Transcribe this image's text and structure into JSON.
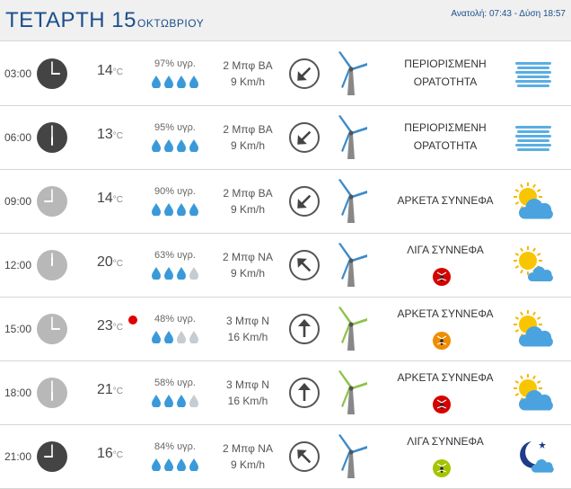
{
  "header": {
    "day": "ΤΕΤΑΡΤΗ 15",
    "month": "ΟΚΤΩΒΡΙΟΥ",
    "sun": "Ανατολή: 07:43  - Δύση 18:57"
  },
  "colors": {
    "title": "#1a4f8b",
    "drop_full": "#3a9ad9",
    "drop_empty": "#c5ccd2",
    "clock_night": "#444444",
    "clock_day": "#b8b8b8",
    "turbine_blue": "#3d8bc9",
    "turbine_green": "#8bc34a",
    "alert_red": "#d50000",
    "alert_orange": "#f08c00",
    "alert_green": "#a5c400"
  },
  "rows": [
    {
      "time": "03:00",
      "hour": 3,
      "clock": "night",
      "temp": "14",
      "unit": "°C",
      "heat": false,
      "humidity": "97% υγρ.",
      "drops": 4,
      "wind": "2 Μπφ ΒΑ",
      "speed": "9 Km/h",
      "arrow": "arrow-down-left",
      "turbine": "blue",
      "cond": [
        "ΠΕΡΙΟΡΙΣΜΕΝΗ",
        "ΟΡΑΤΟΤΗΤΑ"
      ],
      "badge": null,
      "icon": "fog-icon"
    },
    {
      "time": "06:00",
      "hour": 6,
      "clock": "night",
      "temp": "13",
      "unit": "°C",
      "heat": false,
      "humidity": "95% υγρ.",
      "drops": 4,
      "wind": "2 Μπφ ΒΑ",
      "speed": "9 Km/h",
      "arrow": "arrow-down-left",
      "turbine": "blue",
      "cond": [
        "ΠΕΡΙΟΡΙΣΜΕΝΗ",
        "ΟΡΑΤΟΤΗΤΑ"
      ],
      "badge": null,
      "icon": "fog-icon"
    },
    {
      "time": "09:00",
      "hour": 9,
      "clock": "day",
      "temp": "14",
      "unit": "°C",
      "heat": false,
      "humidity": "90% υγρ.",
      "drops": 4,
      "wind": "2 Μπφ ΒΑ",
      "speed": "9 Km/h",
      "arrow": "arrow-down-left",
      "turbine": "blue",
      "cond": [
        "ΑΡΚΕΤΑ ΣΥΝΝΕΦΑ"
      ],
      "badge": null,
      "icon": "sun-cloud-icon"
    },
    {
      "time": "12:00",
      "hour": 12,
      "clock": "day",
      "temp": "20",
      "unit": "°C",
      "heat": false,
      "humidity": "63% υγρ.",
      "drops": 3,
      "wind": "2 Μπφ ΝΑ",
      "speed": "9 Km/h",
      "arrow": "arrow-up-left",
      "turbine": "blue",
      "cond": [
        "ΛΙΓΑ ΣΥΝΝΕΦΑ"
      ],
      "badge": "red",
      "icon": "sun-small-cloud-icon"
    },
    {
      "time": "15:00",
      "hour": 15,
      "clock": "day",
      "temp": "23",
      "unit": "°C",
      "heat": true,
      "humidity": "48% υγρ.",
      "drops": 2,
      "wind": "3 Μπφ Ν",
      "speed": "16 Km/h",
      "arrow": "arrow-up",
      "turbine": "green",
      "cond": [
        "ΑΡΚΕΤΑ ΣΥΝΝΕΦΑ"
      ],
      "badge": "orange",
      "icon": "sun-cloud-icon"
    },
    {
      "time": "18:00",
      "hour": 18,
      "clock": "day",
      "temp": "21",
      "unit": "°C",
      "heat": false,
      "humidity": "58% υγρ.",
      "drops": 3,
      "wind": "3 Μπφ Ν",
      "speed": "16 Km/h",
      "arrow": "arrow-up",
      "turbine": "green",
      "cond": [
        "ΑΡΚΕΤΑ ΣΥΝΝΕΦΑ"
      ],
      "badge": "red",
      "icon": "sun-cloud-icon"
    },
    {
      "time": "21:00",
      "hour": 21,
      "clock": "night",
      "temp": "16",
      "unit": "°C",
      "heat": false,
      "humidity": "84% υγρ.",
      "drops": 4,
      "wind": "2 Μπφ ΝΑ",
      "speed": "9 Km/h",
      "arrow": "arrow-up-left",
      "turbine": "blue",
      "cond": [
        "ΛΙΓΑ ΣΥΝΝΕΦΑ"
      ],
      "badge": "green",
      "icon": "moon-cloud-icon"
    }
  ]
}
